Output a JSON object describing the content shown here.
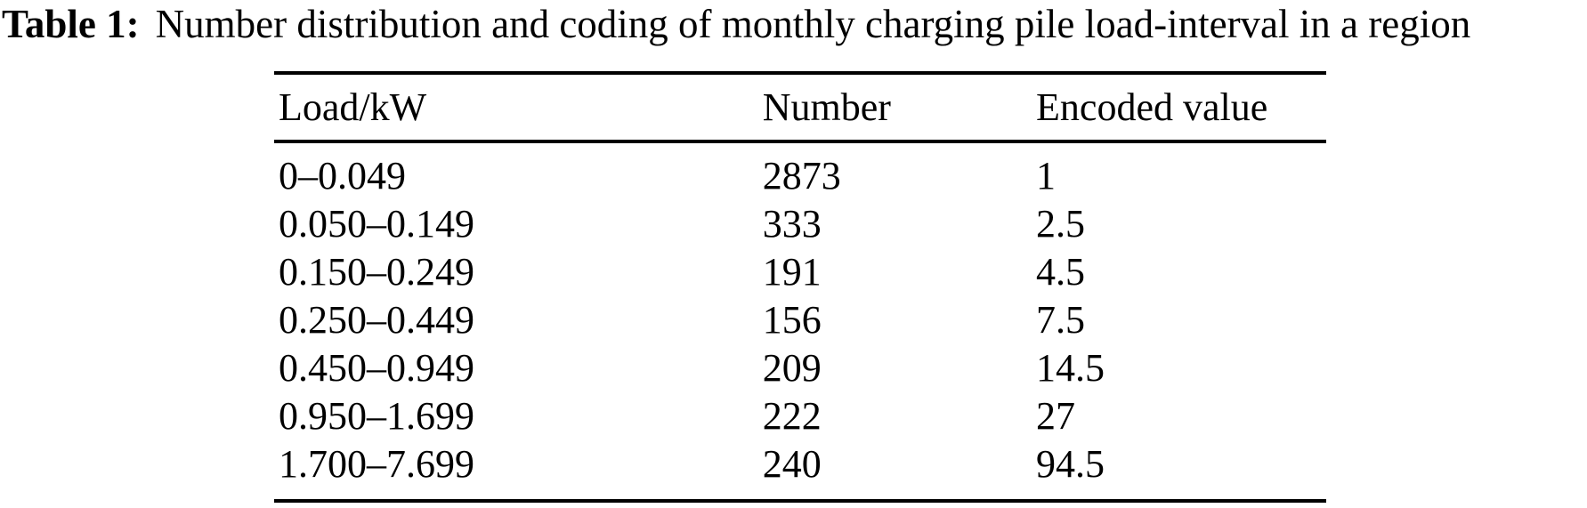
{
  "caption": {
    "label": "Table 1:",
    "text": "Number distribution and coding of monthly charging pile load-interval in a region"
  },
  "table": {
    "columns": [
      "Load/kW",
      "Number",
      "Encoded value"
    ],
    "rows": [
      [
        "0–0.049",
        "2873",
        "1"
      ],
      [
        "0.050–0.149",
        "333",
        "2.5"
      ],
      [
        "0.150–0.249",
        "191",
        "4.5"
      ],
      [
        "0.250–0.449",
        "156",
        "7.5"
      ],
      [
        "0.450–0.949",
        "209",
        "14.5"
      ],
      [
        "0.950–1.699",
        "222",
        "27"
      ],
      [
        "1.700–7.699",
        "240",
        "94.5"
      ]
    ]
  },
  "colors": {
    "text": "#000000",
    "background": "#ffffff",
    "rule": "#000000"
  }
}
